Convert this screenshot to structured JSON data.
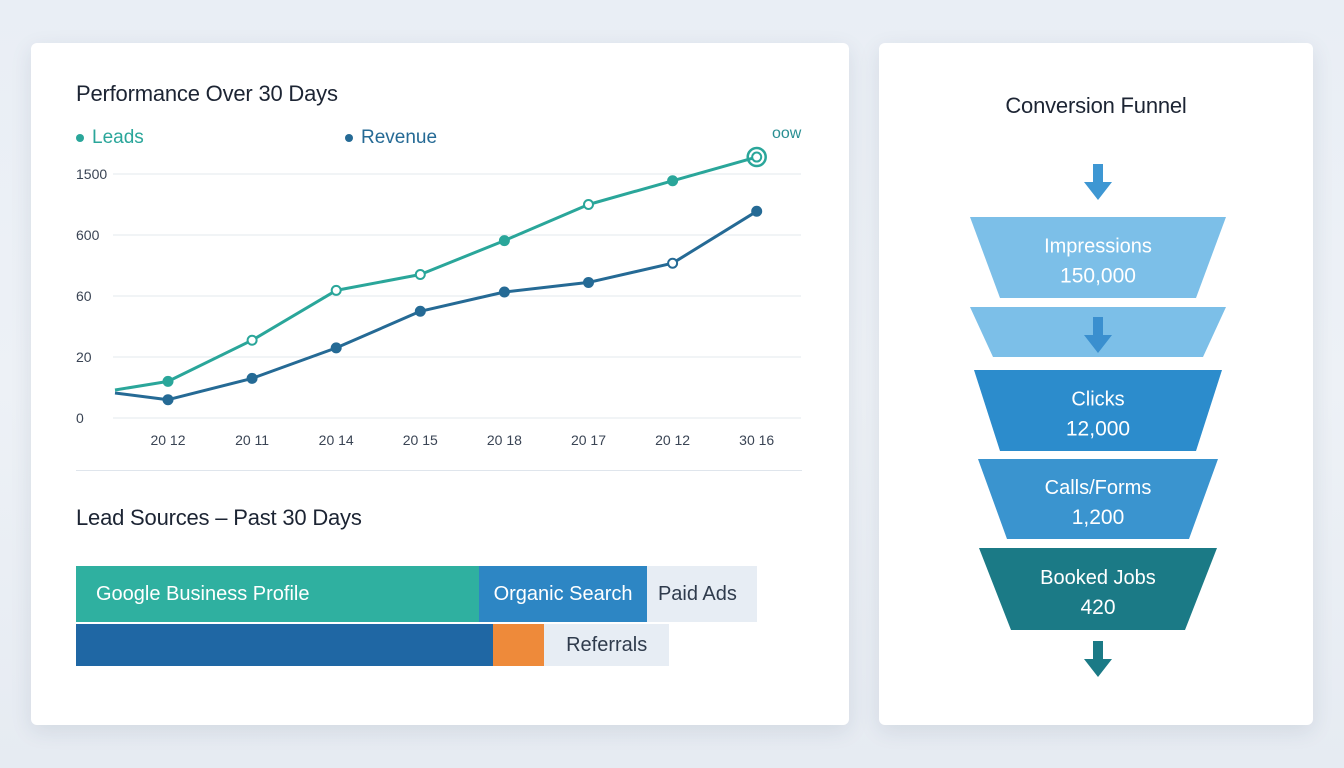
{
  "performance": {
    "title": "Performance Over 30 Days",
    "legend": {
      "leads": "Leads",
      "revenue": "Revenue"
    },
    "end_label": "oow"
  },
  "chart_data": [
    {
      "type": "line",
      "title": "Performance Over 30 Days",
      "y_tick_labels": [
        "0",
        "20",
        "60",
        "600",
        "1500"
      ],
      "x": [
        "2012",
        "2011",
        "2014",
        "2015",
        "2018",
        "2017",
        "2012",
        "3016"
      ],
      "x_tick_labels": [
        "20 12",
        "20 11",
        "20 14",
        "20 15",
        "20 18",
        "20 17",
        "20 12",
        "30 16"
      ],
      "grid": true,
      "legend_position": "top",
      "series": [
        {
          "name": "Leads",
          "color": "#2aa69a",
          "values": [
            12,
            31,
            110,
            250,
            550,
            1050,
            1400,
            1750
          ]
        },
        {
          "name": "Revenue",
          "color": "#256a95",
          "values": [
            6,
            13,
            26,
            50,
            95,
            180,
            350,
            950
          ]
        }
      ]
    },
    {
      "type": "bar",
      "title": "Lead Sources - Past 30 Days",
      "rows": [
        {
          "segments": [
            {
              "label": "Google Business Profile",
              "value": 55,
              "color": "#2fb0a0"
            },
            {
              "label": "Organic Search",
              "value": 23,
              "color": "#2d86c4"
            },
            {
              "label": "Paid Ads",
              "value": 15,
              "color": "#e7edf4"
            }
          ]
        },
        {
          "segments": [
            {
              "label": "",
              "value": 57,
              "color": "#1f67a4"
            },
            {
              "label": "",
              "value": 7,
              "color": "#ee8a3a"
            },
            {
              "label": "Referrals",
              "value": 17,
              "color": "#e7edf4"
            }
          ]
        }
      ]
    },
    {
      "type": "funnel",
      "title": "Conversion Funnel",
      "stages": [
        {
          "label": "Impressions",
          "value": "150,000",
          "color": "#7cbfe8"
        },
        {
          "label": "",
          "value": "",
          "color": "#7cbfe8"
        },
        {
          "label": "Clicks",
          "value": "12,000",
          "color": "#2c8ccc"
        },
        {
          "label": "Calls/Forms",
          "value": "1,200",
          "color": "#3a94cf"
        },
        {
          "label": "Booked Jobs",
          "value": "420",
          "color": "#1b7a86"
        }
      ]
    }
  ],
  "lead_sources": {
    "title": "Lead Sources – Past 30 Days"
  },
  "funnel": {
    "title": "Conversion Funnel"
  },
  "colors": {
    "teal": "#2aa69a",
    "blue": "#256a95",
    "orange": "#ee8a3a"
  }
}
